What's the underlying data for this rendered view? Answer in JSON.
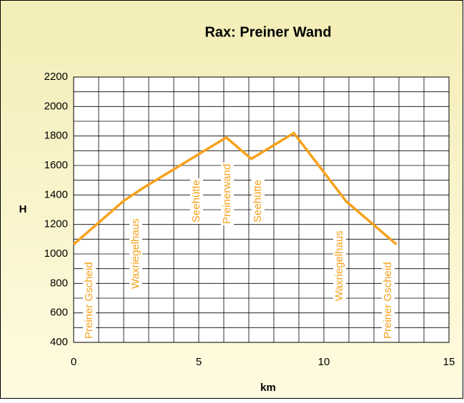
{
  "chart_data": {
    "type": "line",
    "title": "Rax: Preiner Wand",
    "x_label": "km",
    "y_label": "H",
    "x": [
      0,
      2,
      2.8,
      6.1,
      7.1,
      8.8,
      10.9,
      12.9
    ],
    "series": [
      {
        "name": "H",
        "color": "#f7a11a",
        "values": [
          1065,
          1360,
          1450,
          1790,
          1645,
          1820,
          1355,
          1065
        ]
      }
    ],
    "xlim": [
      0,
      15
    ],
    "xticks": [
      0,
      5,
      10,
      15
    ],
    "x_minor_gridlines": [
      1,
      2,
      3,
      4,
      6,
      7,
      8,
      9,
      11,
      12,
      13,
      14
    ],
    "ylim": [
      400,
      2200
    ],
    "yticks": [
      400,
      600,
      800,
      1000,
      1200,
      1400,
      1600,
      1800,
      2000,
      2200
    ],
    "y_minor_gridlines": [
      500,
      700,
      900,
      1100,
      1300,
      1500,
      1700,
      1900,
      2100
    ],
    "grid": true,
    "annotations": [
      "Preiner Gscheid",
      "Waxriegelhaus",
      "Seehütte",
      "Preinerwand",
      "Seehütte",
      "Waxriegelhaus",
      "Preiner Gscheid"
    ]
  }
}
